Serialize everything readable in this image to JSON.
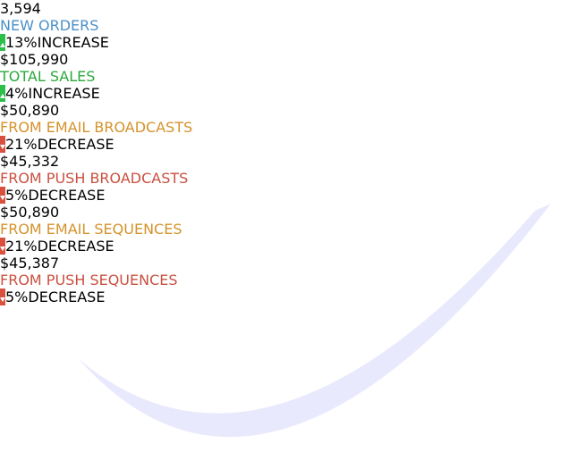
{
  "cards": [
    {
      "value": "3,594",
      "label": "NEW ORDERS",
      "label_color": "#4a90c8",
      "change": "13%INCREASE",
      "trend": "up"
    },
    {
      "value": "$105,990",
      "label": "TOTAL SALES",
      "label_color": "#2aaa3a",
      "change": "4%INCREASE",
      "trend": "up"
    },
    {
      "value": "$50,890",
      "label": "FROM EMAIL BROADCASTS",
      "label_color": "#d4922a",
      "change": "21%DECREASE",
      "trend": "down"
    },
    {
      "value": "$45,332",
      "label": "FROM PUSH BROADCASTS",
      "label_color": "#c9503f",
      "change": "5%DECREASE",
      "trend": "down"
    },
    {
      "value": "$50,890",
      "label": "FROM EMAIL SEQUENCES",
      "label_color": "#d4922a",
      "change": "21%DECREASE",
      "trend": "down"
    },
    {
      "value": "$45,387",
      "label": "FROM PUSH SEQUENCES",
      "label_color": "#c9503f",
      "change": "5%DECREASE",
      "trend": "down"
    }
  ]
}
